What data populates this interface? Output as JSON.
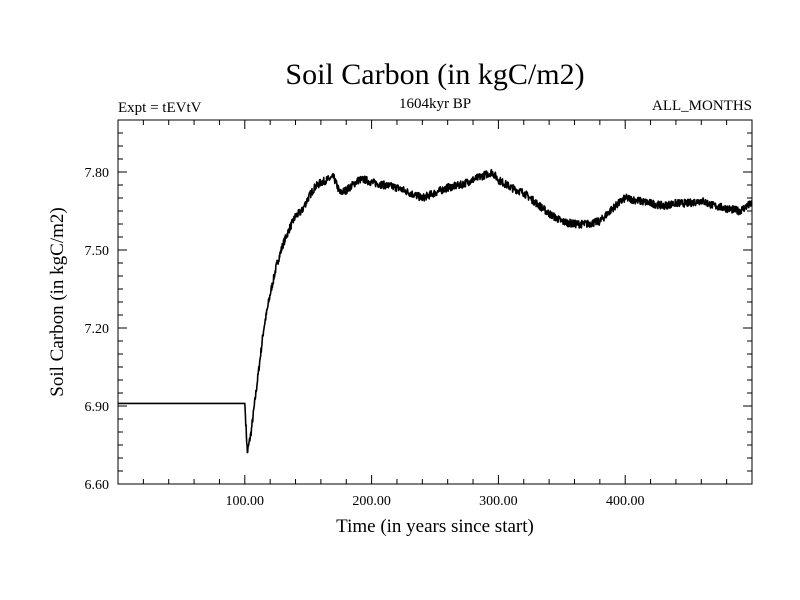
{
  "chart_data": {
    "type": "line",
    "title": "Soil Carbon (in kgC/m2)",
    "subtitle_left": "Expt = tEVtV",
    "subtitle_center": "1604kyr BP",
    "subtitle_right": "ALL_MONTHS",
    "xlabel": "Time (in years since start)",
    "ylabel": "Soil Carbon (in kgC/m2)",
    "xlim": [
      0,
      500
    ],
    "ylim": [
      6.6,
      8.0
    ],
    "xticks": [
      100,
      200,
      300,
      400
    ],
    "xtick_labels": [
      "100.00",
      "200.00",
      "300.00",
      "400.00"
    ],
    "yticks": [
      6.6,
      6.9,
      7.2,
      7.5,
      7.8
    ],
    "ytick_labels": [
      "6.60",
      "6.90",
      "7.20",
      "7.50",
      "7.80"
    ],
    "series": [
      {
        "name": "Soil Carbon",
        "x": [
          0,
          100,
          102,
          105,
          110,
          115,
          120,
          125,
          130,
          135,
          140,
          145,
          150,
          155,
          160,
          165,
          170,
          175,
          180,
          185,
          190,
          195,
          200,
          210,
          220,
          230,
          240,
          250,
          260,
          270,
          280,
          290,
          295,
          300,
          310,
          320,
          330,
          340,
          350,
          360,
          370,
          380,
          390,
          400,
          410,
          420,
          430,
          440,
          450,
          460,
          470,
          480,
          490,
          500
        ],
        "y": [
          6.91,
          6.91,
          6.72,
          6.8,
          7.0,
          7.2,
          7.33,
          7.44,
          7.52,
          7.58,
          7.63,
          7.65,
          7.7,
          7.74,
          7.76,
          7.77,
          7.78,
          7.72,
          7.73,
          7.75,
          7.77,
          7.77,
          7.76,
          7.75,
          7.74,
          7.72,
          7.7,
          7.72,
          7.74,
          7.75,
          7.77,
          7.79,
          7.8,
          7.77,
          7.74,
          7.72,
          7.68,
          7.64,
          7.61,
          7.6,
          7.6,
          7.61,
          7.66,
          7.7,
          7.69,
          7.68,
          7.67,
          7.68,
          7.68,
          7.69,
          7.67,
          7.66,
          7.65,
          7.68
        ]
      }
    ]
  }
}
